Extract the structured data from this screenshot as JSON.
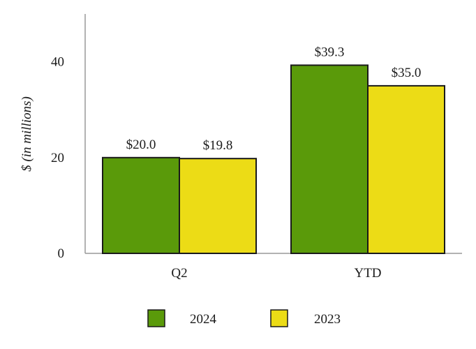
{
  "chart_data": {
    "type": "bar",
    "categories": [
      "Q2",
      "YTD"
    ],
    "series": [
      {
        "name": "2024",
        "values": [
          20.0,
          39.3
        ],
        "labels": [
          "$20.0",
          "$39.3"
        ],
        "color": "#5a9a0a"
      },
      {
        "name": "2023",
        "values": [
          19.8,
          35.0
        ],
        "labels": [
          "$19.8",
          "$35.0"
        ],
        "color": "#ecdc16"
      }
    ],
    "ylabel": "$ (in millions)",
    "xlabel": "",
    "title": "",
    "ylim": [
      0,
      50
    ],
    "yticks": [
      0,
      20,
      40
    ],
    "grid": false,
    "legend": "bottom"
  }
}
